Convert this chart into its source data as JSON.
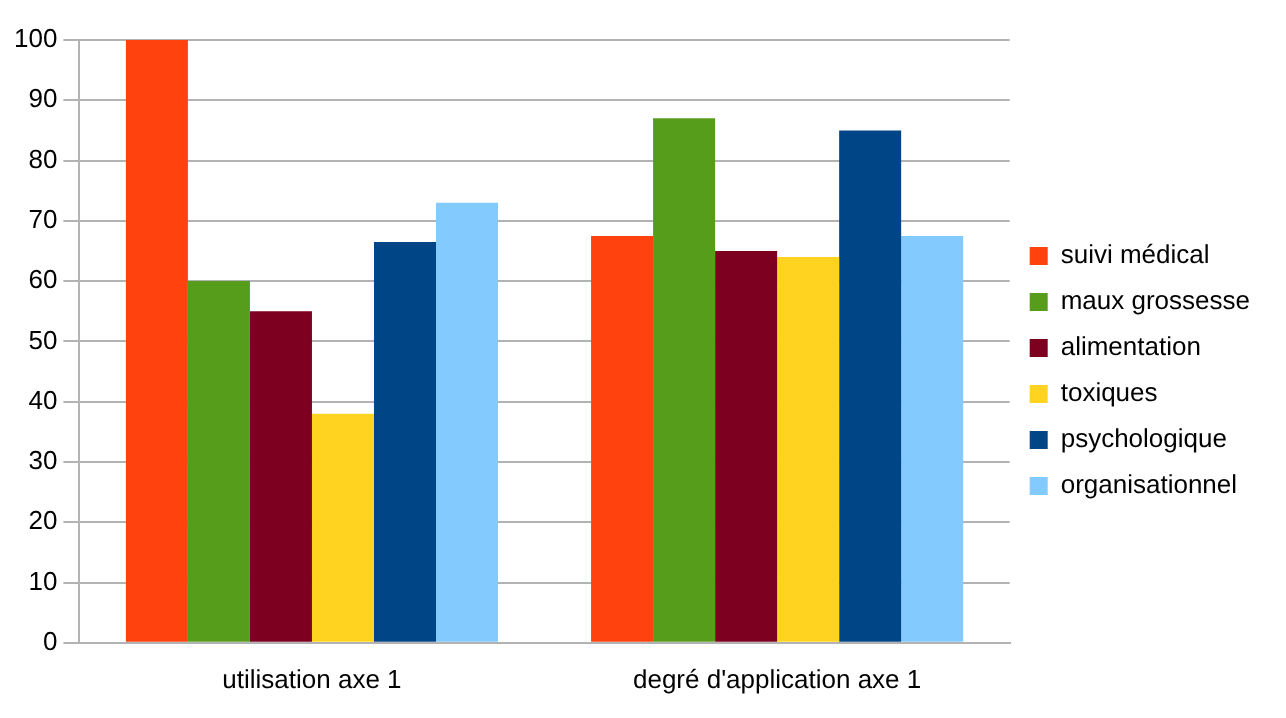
{
  "chart_data": {
    "type": "bar",
    "categories": [
      "utilisation axe 1",
      "degré d'application axe 1"
    ],
    "series": [
      {
        "name": "suivi médical",
        "color": "#ff420e",
        "values": [
          100,
          67.5
        ]
      },
      {
        "name": "maux grossesse",
        "color": "#579d1c",
        "values": [
          60,
          87
        ]
      },
      {
        "name": "alimentation",
        "color": "#7e0021",
        "values": [
          55,
          65
        ]
      },
      {
        "name": "toxiques",
        "color": "#ffd320",
        "values": [
          38,
          64
        ]
      },
      {
        "name": "psychologique",
        "color": "#004586",
        "values": [
          66.5,
          85
        ]
      },
      {
        "name": "organisationnel",
        "color": "#83caff",
        "values": [
          73,
          67.5
        ]
      }
    ],
    "ylim": [
      0,
      100
    ],
    "yticks": [
      0,
      10,
      20,
      30,
      40,
      50,
      60,
      70,
      80,
      90,
      100
    ],
    "grid": "y",
    "legend": "right"
  }
}
